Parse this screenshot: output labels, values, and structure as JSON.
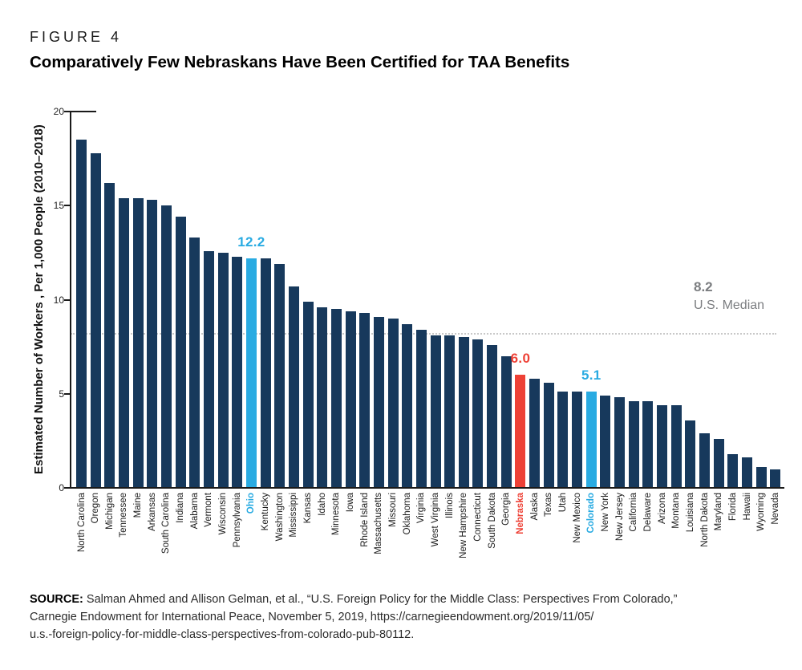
{
  "figure": {
    "label": "FIGURE 4",
    "title": "Comparatively Few Nebraskans Have Been Certified for TAA Benefits"
  },
  "chart_data": {
    "type": "bar",
    "title": "Comparatively Few Nebraskans Have Been Certified for TAA Benefits",
    "xlabel": "",
    "ylabel": "Estimated Number of Workers , Per 1,000 People (2010–2018)",
    "ylim": [
      0,
      20
    ],
    "yticks": [
      0,
      5,
      10,
      15,
      20
    ],
    "grid": false,
    "legend": "none",
    "bar_color_default": "#17395C",
    "categories": [
      "North Carolina",
      "Oregon",
      "Michigan",
      "Tennessee",
      "Maine",
      "Arkansas",
      "South Carolina",
      "Indiana",
      "Alabama",
      "Vermont",
      "Wisconsin",
      "Pennsylvania",
      "Ohio",
      "Kentucky",
      "Washington",
      "Mississippi",
      "Kansas",
      "Idaho",
      "Minnesota",
      "Iowa",
      "Rhode Island",
      "Massachusetts",
      "Missouri",
      "Oklahoma",
      "Virginia",
      "West Virginia",
      "Illinois",
      "New Hampshire",
      "Connecticut",
      "South Dakota",
      "Georgia",
      "Nebraska",
      "Alaska",
      "Texas",
      "Utah",
      "New Mexico",
      "Colorado",
      "New York",
      "New Jersey",
      "California",
      "Delaware",
      "Arizona",
      "Montana",
      "Louisiana",
      "North Dakota",
      "Maryland",
      "Florida",
      "Hawaii",
      "Wyoming",
      "Nevada"
    ],
    "values": [
      18.5,
      17.8,
      16.2,
      15.4,
      15.4,
      15.3,
      15.0,
      14.4,
      13.3,
      12.6,
      12.5,
      12.3,
      12.2,
      12.2,
      11.9,
      10.7,
      9.9,
      9.6,
      9.5,
      9.4,
      9.3,
      9.1,
      9.0,
      8.7,
      8.4,
      8.1,
      8.1,
      8.0,
      7.9,
      7.6,
      7.0,
      6.0,
      5.8,
      5.6,
      5.1,
      5.1,
      5.1,
      4.9,
      4.8,
      4.6,
      4.6,
      4.4,
      4.4,
      3.6,
      2.9,
      2.6,
      1.8,
      1.6,
      1.1,
      1.0
    ],
    "highlights": [
      {
        "state": "Ohio",
        "value_label": "12.2",
        "color": "#29ABE2"
      },
      {
        "state": "Nebraska",
        "value_label": "6.0",
        "color": "#EE4136"
      },
      {
        "state": "Colorado",
        "value_label": "5.1",
        "color": "#29ABE2"
      }
    ],
    "median_line": {
      "value": 8.2,
      "label_value": "8.2",
      "label_text": "U.S. Median",
      "line_color": "#c8c8c8",
      "text_color": "#7b7d80"
    }
  },
  "source": {
    "prefix": "SOURCE:",
    "line1": " Salman Ahmed and Allison Gelman, et al., “U.S. Foreign Policy for the Middle Class: Perspectives From Colorado,”",
    "line2": "Carnegie Endowment for International Peace, November 5, 2019, https://carnegieendowment.org/2019/11/05/",
    "line3": "u.s.-foreign-policy-for-middle-class-perspectives-from-colorado-pub-80112."
  }
}
